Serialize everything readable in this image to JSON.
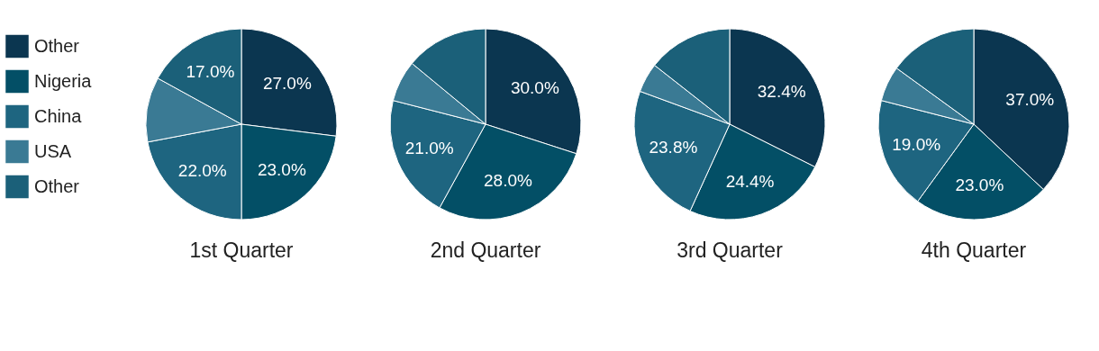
{
  "chart_data": [
    {
      "type": "pie",
      "title": "1st Quarter",
      "legend": "left",
      "categories": [
        "Other",
        "Nigeria",
        "China",
        "USA",
        "Other"
      ],
      "values": [
        27.0,
        23.0,
        22.0,
        11.0,
        17.0
      ],
      "value_labels": [
        "27.0%",
        "23.0%",
        "22.0%",
        null,
        "17.0%"
      ],
      "colors": [
        "#0b3650",
        "#034f66",
        "#1e6580",
        "#3a7a94",
        "#1b6079"
      ]
    },
    {
      "type": "pie",
      "title": "2nd Quarter",
      "categories": [
        null,
        null,
        null,
        null,
        null
      ],
      "values": [
        30.0,
        28.0,
        21.0,
        7.0,
        14.0
      ],
      "value_labels": [
        "30.0%",
        "28.0%",
        "21.0%",
        null,
        null
      ],
      "colors": [
        "#0b3650",
        "#034f66",
        "#1e6580",
        "#3a7a94",
        "#1b6079"
      ]
    },
    {
      "type": "pie",
      "title": "3rd Quarter",
      "categories": [
        null,
        null,
        null,
        null,
        null
      ],
      "values": [
        32.4,
        24.4,
        23.8,
        5.0,
        14.4
      ],
      "value_labels": [
        "32.4%",
        "24.4%",
        "23.8%",
        null,
        null
      ],
      "colors": [
        "#0b3650",
        "#034f66",
        "#1e6580",
        "#3a7a94",
        "#1b6079"
      ]
    },
    {
      "type": "pie",
      "title": "4th Quarter",
      "categories": [
        null,
        null,
        null,
        null,
        null
      ],
      "values": [
        37.0,
        23.0,
        19.0,
        6.0,
        15.0
      ],
      "value_labels": [
        "37.0%",
        "23.0%",
        "19.0%",
        null,
        null
      ],
      "colors": [
        "#0b3650",
        "#034f66",
        "#1e6580",
        "#3a7a94",
        "#1b6079"
      ]
    }
  ]
}
